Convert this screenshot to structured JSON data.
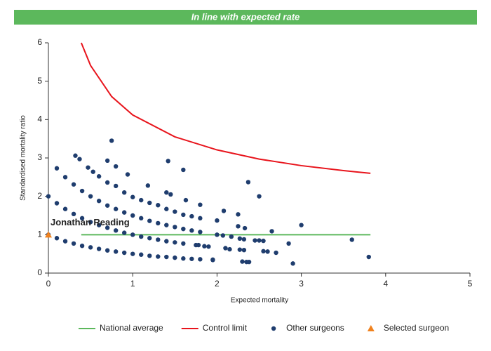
{
  "chart_data": {
    "type": "scatter",
    "banner": "In line with expected rate",
    "xlabel": "Expected mortality",
    "ylabel": "Standardised mortality ratio",
    "xlim": [
      0,
      5
    ],
    "ylim": [
      0,
      6
    ],
    "xticks": [
      0,
      1,
      2,
      3,
      4,
      5
    ],
    "yticks": [
      0,
      1,
      2,
      3,
      4,
      5,
      6
    ],
    "grid": false,
    "legend": "bottom",
    "series": [
      {
        "name": "National average",
        "mode": "line",
        "color": "#5cb85c",
        "x": [
          0.39,
          3.82
        ],
        "values": [
          1,
          1
        ]
      },
      {
        "name": "Control limit",
        "mode": "line",
        "color": "#e8141c",
        "x": [
          0.39,
          0.5,
          0.75,
          1,
          1.5,
          2,
          2.5,
          3,
          3.5,
          3.82
        ],
        "values": [
          6.0,
          5.41,
          4.6,
          4.12,
          3.55,
          3.21,
          2.97,
          2.8,
          2.67,
          2.6
        ]
      },
      {
        "name": "Other surgeons",
        "mode": "scatter",
        "marker": "circle",
        "color": "#1f3d6e",
        "x": [
          0,
          0.1,
          0.2,
          0.3,
          0.4,
          0.5,
          0.6,
          0.7,
          0.8,
          0.9,
          1.0,
          1.1,
          1.2,
          1.3,
          1.4,
          1.5,
          1.6,
          1.7,
          1.8,
          1.95,
          0,
          0.1,
          0.2,
          0.3,
          0.4,
          0.5,
          0.6,
          0.7,
          0.8,
          0.9,
          1.0,
          1.1,
          1.2,
          1.3,
          1.4,
          1.5,
          1.6,
          1.75,
          0.1,
          0.2,
          0.3,
          0.4,
          0.5,
          0.6,
          0.7,
          0.8,
          0.9,
          1.0,
          1.1,
          1.2,
          1.3,
          1.4,
          1.5,
          1.6,
          1.7,
          1.8,
          0.32,
          0.37,
          0.47,
          0.53,
          0.6,
          0.7,
          0.8,
          0.9,
          1.0,
          1.1,
          1.2,
          1.3,
          1.4,
          1.5,
          1.6,
          1.7,
          1.8,
          0.75,
          0.7,
          0.8,
          0.94,
          1.18,
          1.4,
          1.45,
          1.42,
          1.6,
          1.63,
          1.8,
          2.0,
          2.08,
          2.25,
          2.37,
          2.5,
          2.25,
          2.33,
          2.65,
          3.0,
          2.0,
          2.07,
          2.17,
          2.27,
          2.32,
          2.45,
          2.5,
          2.55,
          2.85,
          3.6,
          3.8,
          2.1,
          2.15,
          2.27,
          2.32,
          2.55,
          2.6,
          2.7,
          1.95,
          2.3,
          2.35,
          2.38,
          2.9,
          1.85,
          1.9,
          1.78
        ],
        "values": [
          1,
          0.91,
          0.83,
          0.77,
          0.71,
          0.67,
          0.63,
          0.59,
          0.56,
          0.53,
          0.5,
          0.48,
          0.45,
          0.43,
          0.42,
          0.4,
          0.38,
          0.37,
          0.36,
          0.34,
          2,
          1.82,
          1.67,
          1.54,
          1.43,
          1.33,
          1.25,
          1.18,
          1.11,
          1.05,
          1.0,
          0.95,
          0.91,
          0.87,
          0.83,
          0.8,
          0.77,
          0.73,
          2.73,
          2.5,
          2.31,
          2.14,
          2.0,
          1.88,
          1.76,
          1.67,
          1.58,
          1.5,
          1.43,
          1.36,
          1.3,
          1.25,
          1.2,
          1.15,
          1.11,
          1.07,
          3.06,
          2.97,
          2.75,
          2.64,
          2.52,
          2.36,
          2.27,
          2.1,
          1.98,
          1.9,
          1.83,
          1.77,
          1.67,
          1.6,
          1.52,
          1.48,
          1.43,
          3.45,
          2.93,
          2.78,
          2.57,
          2.28,
          2.1,
          2.05,
          2.92,
          2.69,
          1.9,
          1.78,
          1.37,
          1.62,
          1.53,
          2.37,
          2.0,
          1.22,
          1.17,
          1.09,
          1.25,
          1.0,
          0.98,
          0.95,
          0.9,
          0.88,
          0.85,
          0.85,
          0.84,
          0.77,
          0.87,
          0.42,
          0.65,
          0.62,
          0.61,
          0.6,
          0.57,
          0.56,
          0.53,
          0.35,
          0.3,
          0.29,
          0.29,
          0.25,
          0.7,
          0.69,
          0.73
        ]
      },
      {
        "name": "Selected surgeon",
        "mode": "scatter",
        "marker": "triangle",
        "color": "#f0821e",
        "label": "Jonathan Reading",
        "x": [
          0
        ],
        "values": [
          1
        ]
      }
    ]
  }
}
